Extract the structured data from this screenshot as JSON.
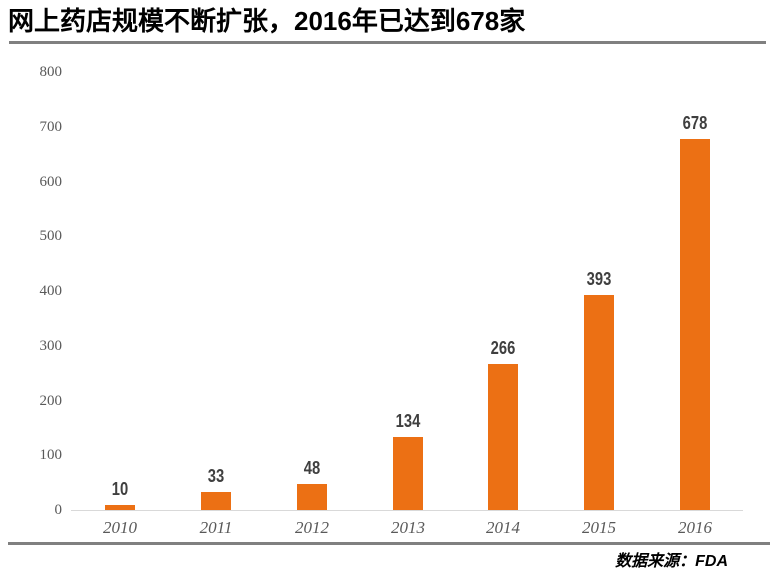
{
  "title": "网上药店规模不断扩张，2016年已达到678家",
  "source": "数据来源：FDA",
  "colors": {
    "bar": "#EC7014",
    "rule_gray": "#808080",
    "axis_line": "#D9D9D9",
    "tick_text": "#595959",
    "value_text": "#3F3F3F"
  },
  "chart_data": {
    "type": "bar",
    "title": "网上药店规模不断扩张，2016年已达到678家",
    "categories": [
      "2010",
      "2011",
      "2012",
      "2013",
      "2014",
      "2015",
      "2016"
    ],
    "values": [
      10,
      33,
      48,
      134,
      266,
      393,
      678
    ],
    "xlabel": "",
    "ylabel": "",
    "ylim": [
      0,
      800
    ],
    "yticks": [
      0,
      100,
      200,
      300,
      400,
      500,
      600,
      700,
      800
    ],
    "grid": false,
    "legend": "none",
    "data_labels": true,
    "bar_color": "#EC7014",
    "source_note": "数据来源：FDA"
  }
}
